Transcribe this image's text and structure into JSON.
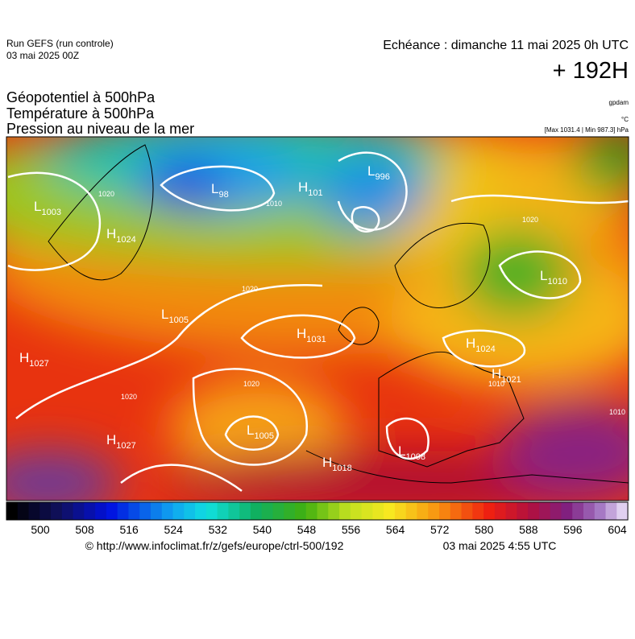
{
  "header": {
    "run": "Run GEFS (run controle)",
    "run_date": "03 mai 2025 00Z",
    "echeance": "Echéance : dimanche 11 mai 2025 0h UTC",
    "lead": "+ 192H"
  },
  "titles": [
    "Géopotentiel à 500hPa",
    "Température à 500hPa",
    "Pression au niveau de la mer"
  ],
  "units": {
    "geopotential": "gpdam",
    "temperature": "°C",
    "pressure": "[Max 1031.4 | Min 987.3] hPa"
  },
  "centers": [
    {
      "letter": "L",
      "value": "1003"
    },
    {
      "letter": "H",
      "value": "1024"
    },
    {
      "letter": "L",
      "value": "98"
    },
    {
      "letter": "H",
      "value": "101"
    },
    {
      "letter": "L",
      "value": "996"
    },
    {
      "letter": "L",
      "value": "1010"
    },
    {
      "letter": "L",
      "value": "1005"
    },
    {
      "letter": "H",
      "value": "1031"
    },
    {
      "letter": "H",
      "value": "1024"
    },
    {
      "letter": "H",
      "value": "1027"
    },
    {
      "letter": "H",
      "value": "1027"
    },
    {
      "letter": "L",
      "value": "1005"
    },
    {
      "letter": "H",
      "value": "1018"
    },
    {
      "letter": "L",
      "value": "1008"
    },
    {
      "letter": "H",
      "value": "1021"
    }
  ],
  "isobar_labels": [
    "1020",
    "1010",
    "1020",
    "1020",
    "1020",
    "1020",
    "1010",
    "1010"
  ],
  "colorbar": {
    "labels": [
      500,
      508,
      516,
      524,
      532,
      540,
      548,
      556,
      564,
      572,
      580,
      588,
      596,
      604
    ]
  },
  "footer": {
    "source": "© http://www.infoclimat.fr/z/gefs/europe/ctrl-500/192",
    "time": "03 mai 2025  4:55 UTC"
  }
}
